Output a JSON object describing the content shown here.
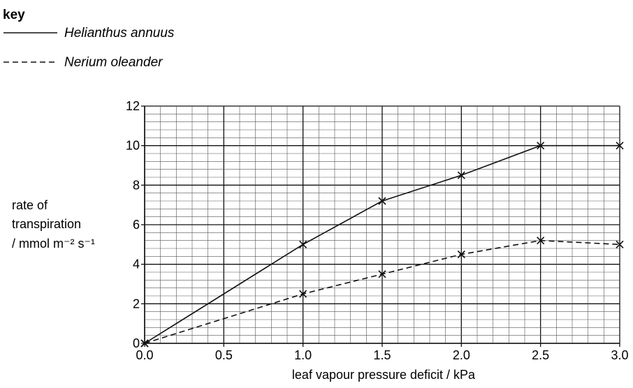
{
  "key": {
    "title": "key",
    "entries": [
      {
        "label": "Helianthus annuus",
        "style": "solid"
      },
      {
        "label": "Nerium oleander",
        "style": "dashed"
      }
    ]
  },
  "chart_data": {
    "type": "line",
    "xlabel": "leaf vapour pressure deficit / kPa",
    "ylabel_lines": [
      "rate of",
      "transpiration",
      "/ mmol m⁻² s⁻¹"
    ],
    "xlim": [
      0,
      3
    ],
    "ylim": [
      0,
      12
    ],
    "x_ticks": [
      "0.0",
      "0.5",
      "1.0",
      "1.5",
      "2.0",
      "2.5",
      "3.0"
    ],
    "y_ticks": [
      "0",
      "2",
      "4",
      "6",
      "8",
      "10",
      "12"
    ],
    "grid": true,
    "legend_position": "top-left",
    "marker": "cross",
    "series": [
      {
        "name": "Helianthus annuus",
        "line": "solid",
        "points": [
          [
            0,
            0
          ],
          [
            1.0,
            5.0
          ],
          [
            1.5,
            7.2
          ],
          [
            2.0,
            8.5
          ],
          [
            2.5,
            10.0
          ],
          [
            3.0,
            10.0
          ]
        ]
      },
      {
        "name": "Nerium oleander",
        "line": "dashed",
        "points": [
          [
            0,
            0
          ],
          [
            1.0,
            2.5
          ],
          [
            1.5,
            3.5
          ],
          [
            2.0,
            4.5
          ],
          [
            2.5,
            5.2
          ],
          [
            3.0,
            5.0
          ]
        ]
      }
    ]
  },
  "colors": {
    "ink": "#111111",
    "grid_minor": "#555555",
    "grid_major": "#111111"
  }
}
